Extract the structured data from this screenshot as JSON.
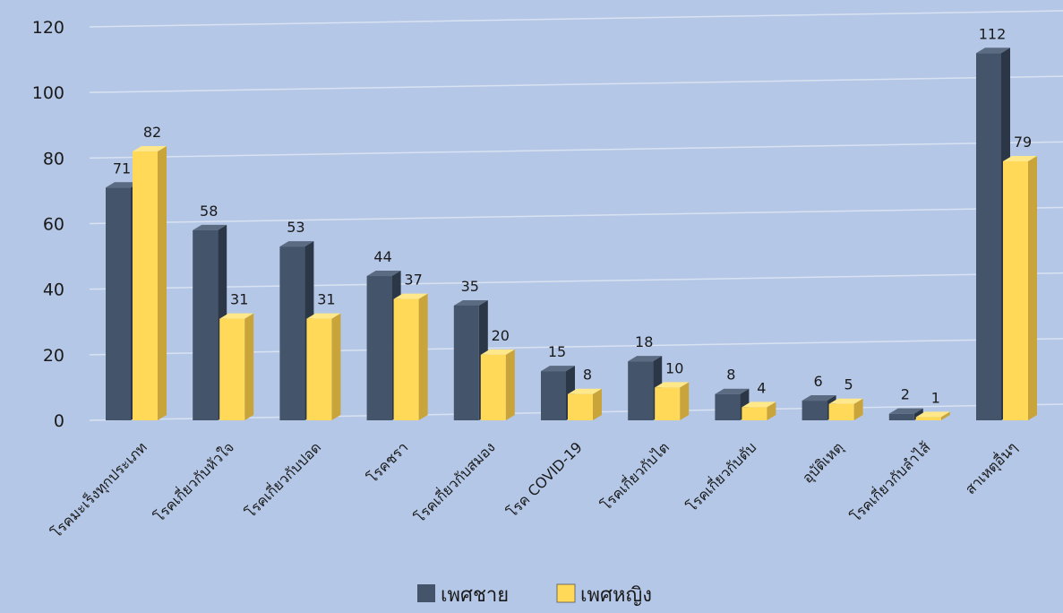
{
  "chart_data": {
    "type": "bar",
    "categories": [
      "โรคมะเร็งทุกประเภท",
      "โรคเกี่ยวกับหัวใจ",
      "โรคเกี่ยวกับปอด",
      "โรคชรา",
      "โรคเกี่ยวกับสมอง",
      "โรค COVID-19",
      "โรคเกี่ยวกับไต",
      "โรคเกี่ยวกับตับ",
      "อุบัติเหตุ",
      "โรคเกี่ยวกับลำไส้",
      "สาเหตุอื่นๆ"
    ],
    "series": [
      {
        "name": "เพศชาย",
        "values": [
          71,
          58,
          53,
          44,
          35,
          15,
          18,
          8,
          6,
          2,
          112
        ]
      },
      {
        "name": "เพศหญิง",
        "values": [
          82,
          31,
          31,
          37,
          20,
          8,
          10,
          4,
          5,
          1,
          79
        ]
      }
    ],
    "yticks": [
      0,
      20,
      40,
      60,
      80,
      100,
      120
    ],
    "ylim": [
      0,
      120
    ],
    "legend_position": "bottom",
    "grid": true,
    "colors": {
      "male_front": "#44546a",
      "male_side": "#2b3646",
      "male_top": "#5a6b82",
      "female_front": "#ffd957",
      "female_side": "#c9a43a",
      "female_top": "#ffe88a",
      "background": "#b4c7e7",
      "gridline": "#d9e2f1"
    }
  }
}
